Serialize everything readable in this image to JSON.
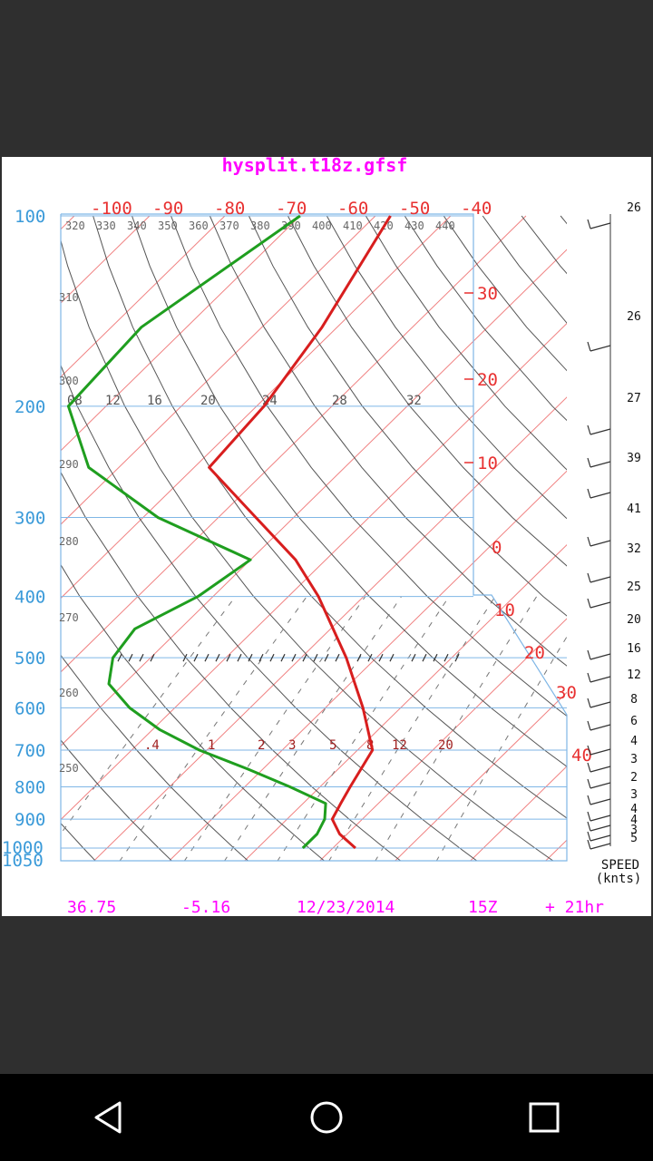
{
  "title": "hysplit.t18z.gfsf",
  "footer": {
    "lat": "36.75",
    "lon": "-5.16",
    "date": "12/23/2014",
    "hour": "15Z",
    "offset": "+ 21hr"
  },
  "colors": {
    "title": "#ff00ff",
    "pressure_axis": "#3a9ad9",
    "temperature_axis": "#e83030",
    "temperature_line": "#d81e1e",
    "dewpoint_line": "#1f9e1f",
    "wind": "#333333"
  },
  "chart_data": {
    "type": "line",
    "pressure_labels": [
      "100",
      "200",
      "300",
      "400",
      "500",
      "600",
      "700",
      "800",
      "900",
      "1000",
      "1050"
    ],
    "top_temperature_labels": [
      "-100",
      "-90",
      "-80",
      "-70",
      "-60",
      "-50",
      "-40"
    ],
    "side_temperature_labels": [
      "30",
      "20",
      "10",
      "0",
      "10",
      "20",
      "30",
      "40"
    ],
    "theta_labels_top": [
      "320",
      "330",
      "340",
      "350",
      "360",
      "370",
      "380",
      "390",
      "400",
      "410",
      "420",
      "430",
      "440"
    ],
    "theta_labels_left": [
      "310",
      "300",
      "290",
      "280",
      "270",
      "260",
      "250"
    ],
    "mixing_ratio_labels_upper": [
      "08",
      "12",
      "16",
      "20",
      "24",
      "28",
      "32"
    ],
    "mixing_ratio_labels_lower": [
      ".4",
      "1",
      "2",
      "3",
      "5",
      "8",
      "12",
      "20"
    ],
    "wind_speed_header": "SPEED",
    "wind_speed_unit": "(knts)",
    "wind_speeds": [
      "26",
      "26",
      "27",
      "39",
      "41",
      "32",
      "25",
      "20",
      "16",
      "12",
      "8",
      "6",
      "4",
      "3",
      "2",
      "3",
      "4",
      "4",
      "3",
      "5"
    ],
    "series": [
      {
        "values": [
          [
            100,
            -68
          ],
          [
            150,
            -62
          ],
          [
            200,
            -59
          ],
          [
            250,
            -58
          ],
          [
            300,
            -45
          ],
          [
            350,
            -34
          ],
          [
            400,
            -26
          ],
          [
            500,
            -14
          ],
          [
            600,
            -5
          ],
          [
            700,
            2
          ],
          [
            800,
            4
          ],
          [
            850,
            5
          ],
          [
            900,
            6
          ],
          [
            950,
            9
          ],
          [
            1000,
            13
          ]
        ]
      },
      {
        "values": [
          [
            100,
            -80
          ],
          [
            150,
            -86
          ],
          [
            200,
            -85
          ],
          [
            250,
            -74
          ],
          [
            300,
            -58
          ],
          [
            350,
            -40
          ],
          [
            400,
            -42
          ],
          [
            450,
            -46
          ],
          [
            500,
            -45
          ],
          [
            550,
            -42
          ],
          [
            600,
            -36
          ],
          [
            650,
            -29
          ],
          [
            700,
            -21
          ],
          [
            750,
            -12
          ],
          [
            800,
            -4
          ],
          [
            850,
            3
          ],
          [
            900,
            5
          ],
          [
            950,
            6
          ],
          [
            1000,
            6
          ]
        ]
      }
    ]
  }
}
